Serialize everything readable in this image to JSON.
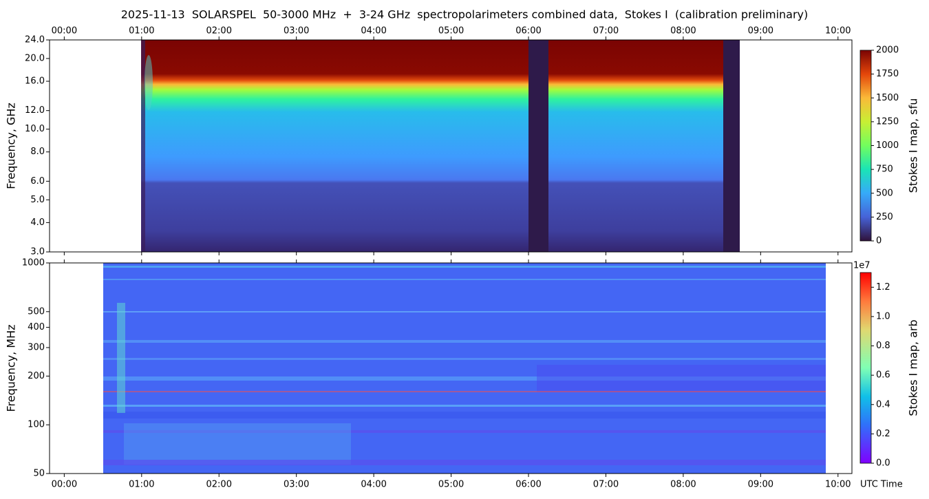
{
  "chart_data": [
    {
      "type": "heatmap",
      "title": "2025-11-13  SOLARSPEL  50-3000 MHz  +  3-24 GHz  spectropolarimeters combined data,  Stokes I  (calibration preliminary)",
      "ylabel": "Frequency, GHz",
      "yscale": "log",
      "ylim": [
        3,
        24
      ],
      "yticks": [
        {
          "value": 3,
          "label": "3.0"
        },
        {
          "value": 4,
          "label": "4.0"
        },
        {
          "value": 5,
          "label": "5.0"
        },
        {
          "value": 6,
          "label": "6.0"
        },
        {
          "value": 8,
          "label": "8.0"
        },
        {
          "value": 10,
          "label": "10.0"
        },
        {
          "value": 12,
          "label": "12.0"
        },
        {
          "value": 16,
          "label": "16.0"
        },
        {
          "value": 20,
          "label": "20.0"
        },
        {
          "value": 24,
          "label": "24.0"
        }
      ],
      "xlim": [
        -0.19,
        10.18
      ],
      "xtick_side": "top",
      "xticks": [
        {
          "value": 0,
          "label": "00:00"
        },
        {
          "value": 1,
          "label": "01:00"
        },
        {
          "value": 2,
          "label": "02:00"
        },
        {
          "value": 3,
          "label": "03:00"
        },
        {
          "value": 4,
          "label": "04:00"
        },
        {
          "value": 5,
          "label": "05:00"
        },
        {
          "value": 6,
          "label": "06:00"
        },
        {
          "value": 7,
          "label": "07:00"
        },
        {
          "value": 8,
          "label": "08:00"
        },
        {
          "value": 9,
          "label": "09:00"
        },
        {
          "value": 10,
          "label": "10:00"
        }
      ],
      "colorbar": {
        "label": "Stokes I map, sfu",
        "lim": [
          0,
          2000
        ],
        "ticks": [
          0,
          250,
          500,
          750,
          1000,
          1250,
          1500,
          1750,
          2000
        ]
      }
    },
    {
      "type": "heatmap",
      "ylabel": "Frequency, MHz",
      "yscale": "log",
      "ylim": [
        50,
        1000
      ],
      "yticks": [
        50,
        100,
        200,
        300,
        400,
        500,
        1000
      ],
      "xlim": [
        -0.19,
        10.18
      ],
      "xtick_side": "bottom",
      "xlabel": "UTC Time",
      "xticks": [
        {
          "value": 0,
          "label": "00:00"
        },
        {
          "value": 1,
          "label": "01:00"
        },
        {
          "value": 2,
          "label": "02:00"
        },
        {
          "value": 3,
          "label": "03:00"
        },
        {
          "value": 4,
          "label": "04:00"
        },
        {
          "value": 5,
          "label": "05:00"
        },
        {
          "value": 6,
          "label": "06:00"
        },
        {
          "value": 7,
          "label": "07:00"
        },
        {
          "value": 8,
          "label": "08:00"
        },
        {
          "value": 9,
          "label": "09:00"
        },
        {
          "value": 10,
          "label": "10:00"
        }
      ],
      "colorbar": {
        "label": "Stokes I map, arb",
        "offset": "1e7",
        "lim": [
          0,
          1.3
        ],
        "ticks": [
          {
            "value": 0,
            "label": "0.0"
          },
          0.2,
          0.4,
          0.6,
          0.8,
          {
            "value": 1,
            "label": "1.0"
          },
          1.2
        ]
      }
    }
  ]
}
